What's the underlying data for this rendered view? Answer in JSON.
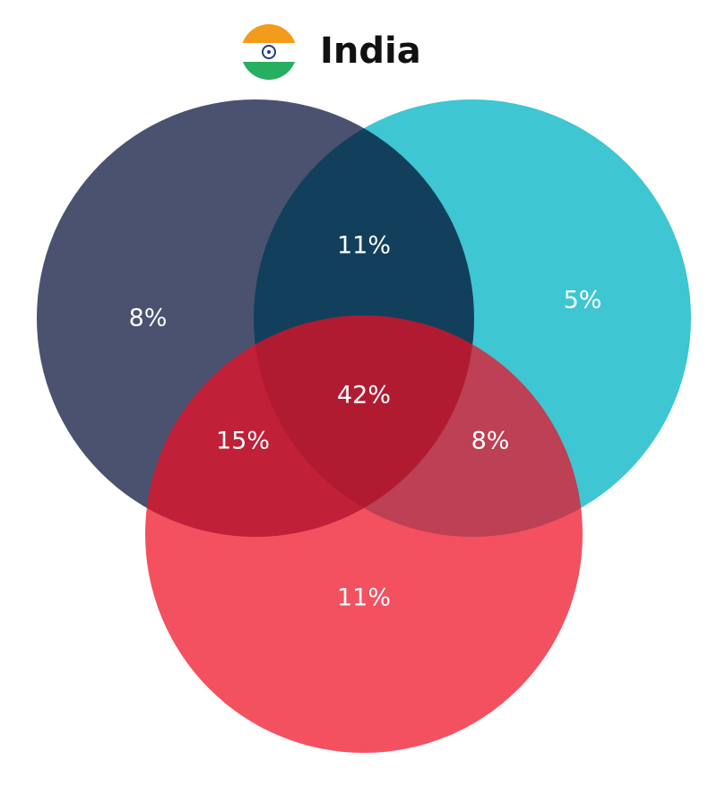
{
  "chart_data": {
    "type": "venn",
    "title": "India",
    "values": [
      8,
      11,
      5,
      42,
      15,
      8,
      11
    ],
    "value_labels": [
      "8%",
      "11%",
      "5%",
      "42%",
      "15%",
      "8%",
      "11%"
    ],
    "colors": [
      "#4a5270",
      "#3ec6d2",
      "#ee0d22"
    ]
  }
}
